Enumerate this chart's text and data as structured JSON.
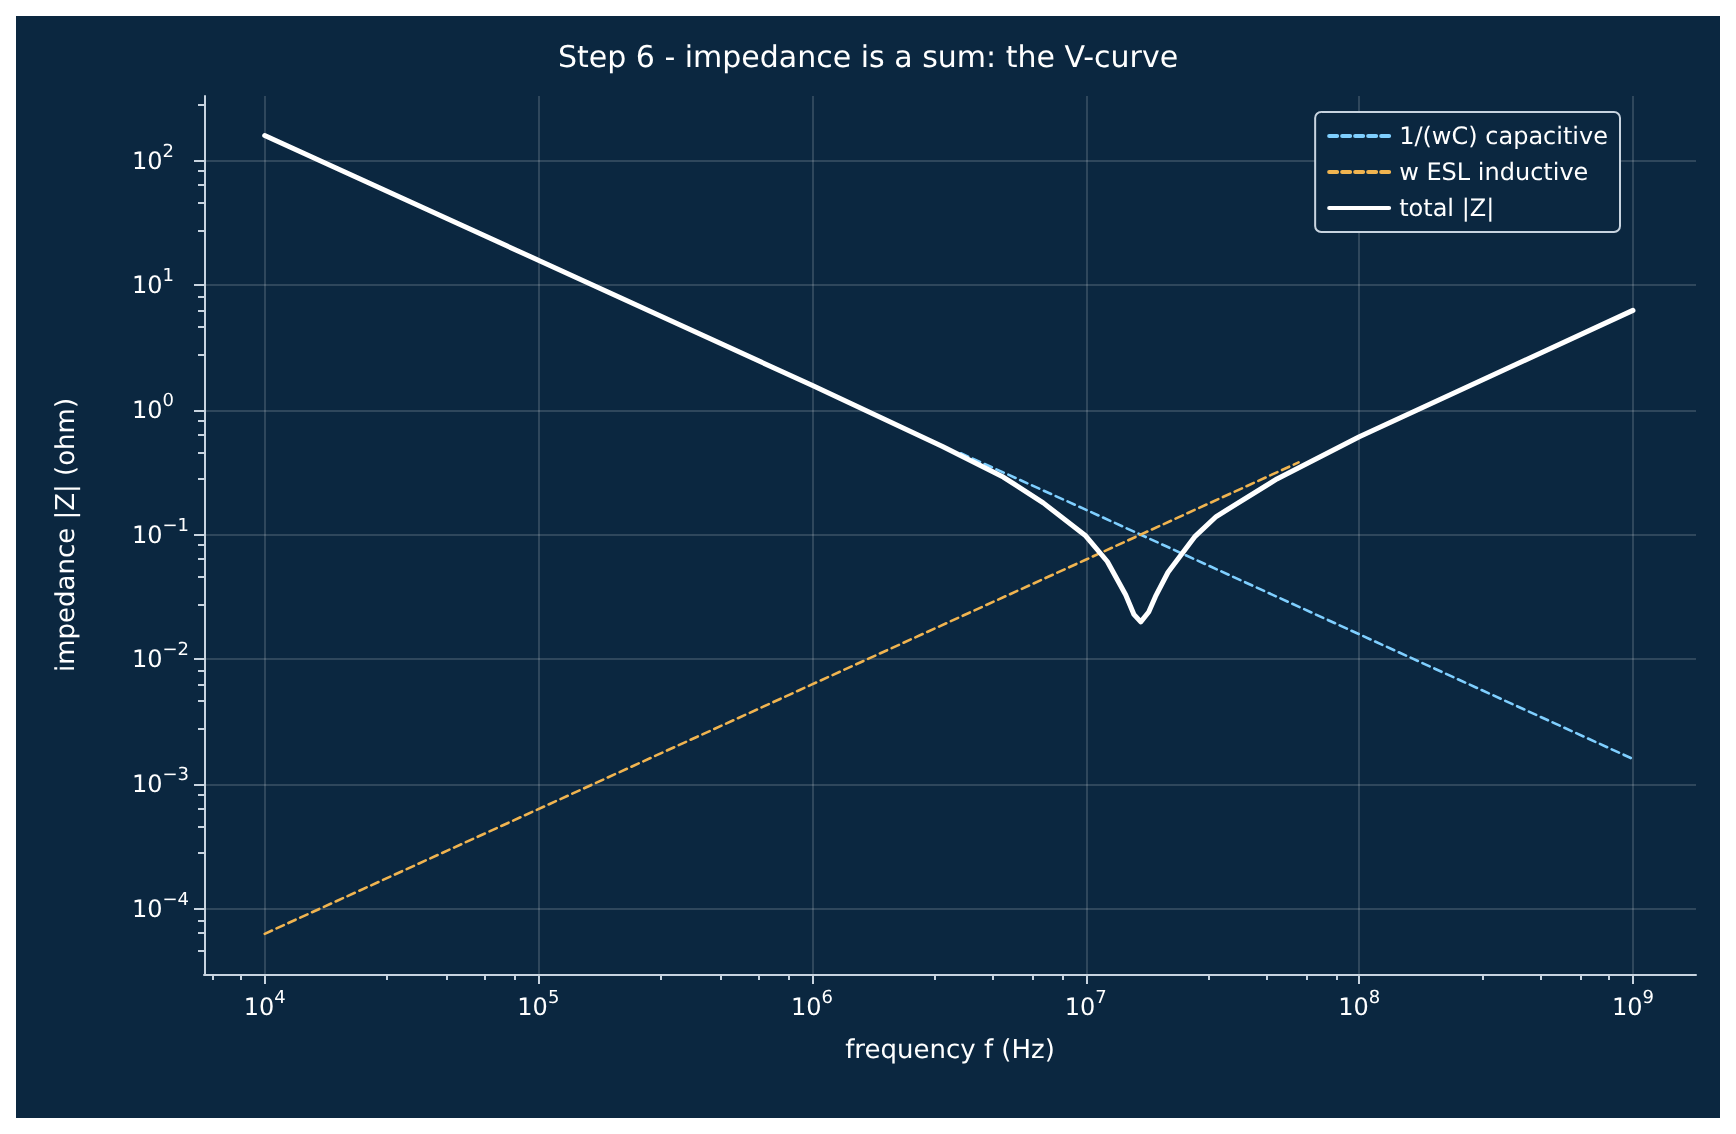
{
  "chart_data": {
    "type": "line",
    "title": "Step 6 - impedance is a sum: the V-curve",
    "xlabel": "frequency f (Hz)",
    "ylabel": "impedance |Z| (ohm)",
    "log": "xy",
    "grid": true,
    "legend": "top right",
    "marker": "none",
    "xlim": [
      6000,
      1700000000
    ],
    "ylim": [
      3e-05,
      330
    ],
    "xticks": [
      {
        "value": 10000,
        "label": "10$^{4}$"
      },
      {
        "value": 100000,
        "label": "10$^{5}$"
      },
      {
        "value": 1000000,
        "label": "10$^{6}$"
      },
      {
        "value": 10000000,
        "label": "10$^{7}$"
      },
      {
        "value": 100000000,
        "label": "10$^{8}$"
      },
      {
        "value": 1000000000,
        "label": "10$^{9}$"
      }
    ],
    "yticks": [
      {
        "value": 0.0001,
        "label": "10$^{−4}$"
      },
      {
        "value": 0.001,
        "label": "10$^{−3}$"
      },
      {
        "value": 0.01,
        "label": "10$^{−2}$"
      },
      {
        "value": 0.1,
        "label": "10$^{−1}$"
      },
      {
        "value": 1,
        "label": "10$^{0}$"
      },
      {
        "value": 10,
        "label": "10$^{1}$"
      },
      {
        "value": 100,
        "label": "10$^{2}$"
      }
    ],
    "series": [
      {
        "name": "1/(wC) capacitive",
        "color": "#7fcfff",
        "line_style": "dashed",
        "x": [
          3500000,
          10000000,
          100000000,
          1000000000
        ],
        "values": [
          0.45,
          0.159,
          0.0159,
          0.00159
        ]
      },
      {
        "name": "w ESL inductive",
        "color": "#f0b450",
        "line_style": "dashed",
        "x": [
          10000,
          100000,
          1000000,
          10000000,
          60000000
        ],
        "values": [
          6.3e-05,
          0.00063,
          0.0063,
          0.063,
          0.38
        ]
      },
      {
        "name": "total |Z|",
        "color": "#ffffff",
        "line_style": "solid",
        "x": [
          10000,
          100000,
          1000000,
          3000000,
          5000000,
          7000000,
          10000000,
          12000000,
          14000000,
          15000000,
          15900000,
          17000000,
          18000000,
          20000000,
          25000000,
          30000000,
          50000000,
          100000000,
          1000000000
        ],
        "values": [
          159,
          15.9,
          1.58,
          0.51,
          0.29,
          0.18,
          0.098,
          0.061,
          0.033,
          0.023,
          0.02,
          0.024,
          0.032,
          0.05,
          0.096,
          0.14,
          0.28,
          0.61,
          6.3
        ]
      }
    ]
  }
}
